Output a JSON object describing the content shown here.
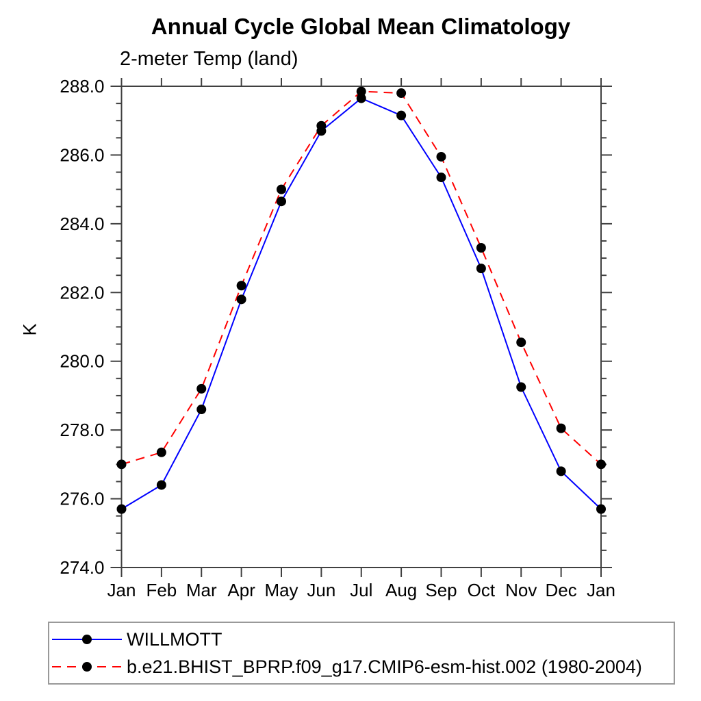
{
  "page": {
    "background": "#ffffff"
  },
  "chart_data": {
    "type": "line",
    "title": "Annual Cycle Global Mean Climatology",
    "subtitle": "2-meter Temp (land)",
    "ylabel": "K",
    "x_tick_labels": [
      "Jan",
      "Feb",
      "Mar",
      "Apr",
      "May",
      "Jun",
      "Jul",
      "Aug",
      "Sep",
      "Oct",
      "Nov",
      "Dec",
      "Jan"
    ],
    "ylim": [
      274.0,
      288.0
    ],
    "y_major_step": 2.0,
    "y_minor_step": 0.5,
    "grid": false,
    "axis_color": "#404040",
    "marker": "filled-circle",
    "marker_color": "#000000",
    "legend": {
      "position": "bottom-left",
      "border_color": "#999999",
      "entries": [
        {
          "label": "WILLMOTT",
          "line_style": "solid"
        },
        {
          "label": "b.e21.BHIST_BPRP.f09_g17.CMIP6-esm-hist.002 (1980-2004)",
          "line_style": "dashed"
        }
      ]
    },
    "series": [
      {
        "name": "WILLMOTT",
        "color": "#0000ff",
        "style": "solid",
        "marker_color": "#000000",
        "values": [
          275.7,
          276.4,
          278.6,
          281.8,
          284.65,
          286.7,
          287.65,
          287.15,
          285.35,
          282.7,
          279.25,
          276.8,
          275.7
        ]
      },
      {
        "name": "b.e21.BHIST_BPRP.f09_g17.CMIP6-esm-hist.002 (1980-2004)",
        "color": "#ff0000",
        "style": "dashed",
        "marker_color": "#000000",
        "values": [
          277.0,
          277.35,
          279.2,
          282.2,
          285.0,
          286.85,
          287.85,
          287.8,
          285.95,
          283.3,
          280.55,
          278.05,
          277.0
        ]
      }
    ]
  }
}
